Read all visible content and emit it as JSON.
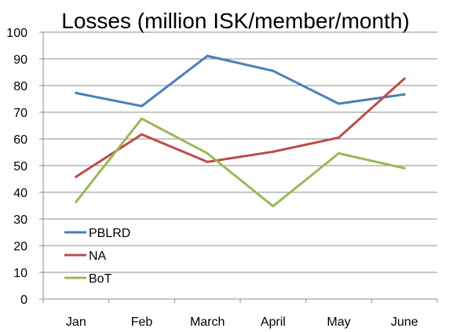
{
  "chart_data": {
    "type": "line",
    "title": "Losses (million ISK/member/month)",
    "xlabel": "",
    "ylabel": "",
    "categories": [
      "Jan",
      "Feb",
      "March",
      "April",
      "May",
      "June"
    ],
    "ylim": [
      0,
      100
    ],
    "yticks": [
      0,
      10,
      20,
      30,
      40,
      50,
      60,
      70,
      80,
      90,
      100
    ],
    "grid": true,
    "legend_position": "bottom-left",
    "series": [
      {
        "name": "PBLRD",
        "color": "#4a7ebb",
        "values": [
          77.2,
          72.3,
          91.1,
          85.5,
          73.2,
          76.7
        ]
      },
      {
        "name": "NA",
        "color": "#be4b48",
        "values": [
          45.8,
          61.7,
          51.4,
          55.2,
          60.5,
          82.6
        ]
      },
      {
        "name": "BoT",
        "color": "#98b954",
        "values": [
          36.4,
          67.6,
          54.6,
          34.8,
          54.6,
          49.0
        ]
      }
    ]
  }
}
